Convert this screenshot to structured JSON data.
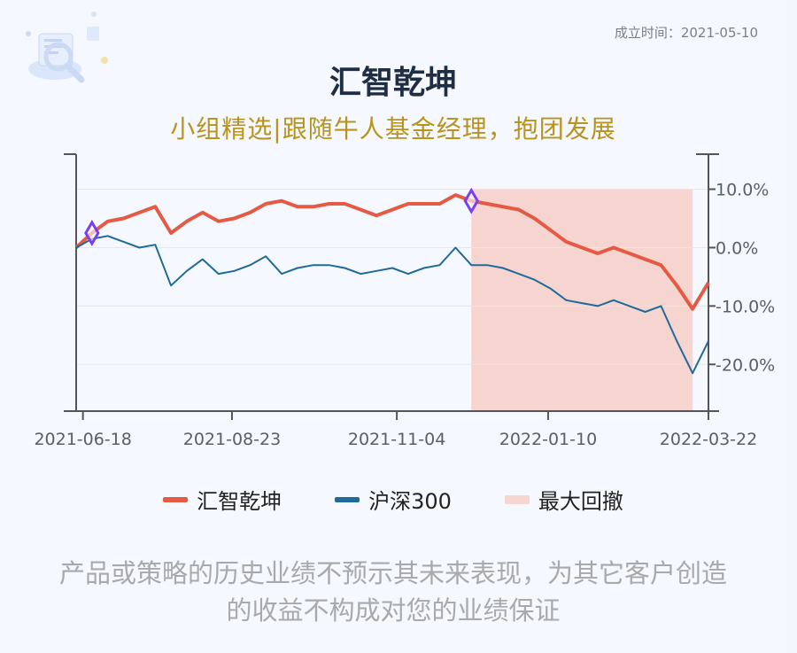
{
  "header": {
    "founded": "成立时间：2021-05-10",
    "title": "汇智乾坤",
    "subtitle": "小组精选|跟随牛人基金经理，抱团发展"
  },
  "legend": [
    {
      "label": "汇智乾坤",
      "color": "#e55a44"
    },
    {
      "label": "沪深300",
      "color": "#1f6a98"
    },
    {
      "label": "最大回撤",
      "color": "#f6d4d0"
    }
  ],
  "disclaimer": "产品或策略的历史业绩不预示其未来表现，为其它客户创造的收益不构成对您的业绩保证",
  "colors": {
    "fund": "#e55a44",
    "index": "#1f6a98",
    "drawdown": "#f6d4d0",
    "marker": "#7b3ff2",
    "axis": "#555555",
    "grid": "#e3e6ec"
  },
  "chart_data": {
    "type": "line",
    "x_ticks": [
      "2021-06-18",
      "2021-08-23",
      "2021-11-04",
      "2022-01-10",
      "2022-03-22"
    ],
    "y_ticks": [
      "10.0%",
      "0.0%",
      "-10.0%",
      "-20.0%"
    ],
    "ylim": [
      -28,
      16
    ],
    "y_axis_position": "right",
    "legend_position": "bottom",
    "grid": true,
    "x": [
      "2021-06-15",
      "2021-06-22",
      "2021-06-29",
      "2021-07-06",
      "2021-07-13",
      "2021-07-20",
      "2021-07-27",
      "2021-08-03",
      "2021-08-10",
      "2021-08-17",
      "2021-08-24",
      "2021-08-31",
      "2021-09-07",
      "2021-09-14",
      "2021-09-21",
      "2021-09-28",
      "2021-10-05",
      "2021-10-12",
      "2021-10-19",
      "2021-10-26",
      "2021-11-02",
      "2021-11-09",
      "2021-11-16",
      "2021-11-23",
      "2021-11-30",
      "2021-12-07",
      "2021-12-14",
      "2021-12-21",
      "2021-12-28",
      "2022-01-04",
      "2022-01-11",
      "2022-01-18",
      "2022-01-25",
      "2022-02-01",
      "2022-02-08",
      "2022-02-15",
      "2022-02-22",
      "2022-03-01",
      "2022-03-08",
      "2022-03-15",
      "2022-03-22"
    ],
    "series": [
      {
        "name": "汇智乾坤",
        "values": [
          0.0,
          2.5,
          4.5,
          5.0,
          6.0,
          7.0,
          2.5,
          4.5,
          6.0,
          4.5,
          5.0,
          6.0,
          7.5,
          8.0,
          7.0,
          7.0,
          7.5,
          7.5,
          6.5,
          5.5,
          6.5,
          7.5,
          7.5,
          7.5,
          9.0,
          8.0,
          7.5,
          7.0,
          6.5,
          5.0,
          3.0,
          1.0,
          0.0,
          -1.0,
          0.0,
          -1.0,
          -2.0,
          -3.0,
          -6.5,
          -10.5,
          -6.0
        ]
      },
      {
        "name": "沪深300",
        "values": [
          0.0,
          1.5,
          2.0,
          1.0,
          0.0,
          0.5,
          -6.5,
          -4.0,
          -2.0,
          -4.5,
          -4.0,
          -3.0,
          -1.5,
          -4.5,
          -3.5,
          -3.0,
          -3.0,
          -3.5,
          -4.5,
          -4.0,
          -3.5,
          -4.5,
          -3.5,
          -3.0,
          0.0,
          -3.0,
          -3.0,
          -3.5,
          -4.5,
          -5.5,
          -7.0,
          -9.0,
          -9.5,
          -10.0,
          -9.0,
          -10.0,
          -11.0,
          -10.0,
          -16.0,
          -21.5,
          -16.0
        ]
      }
    ],
    "max_drawdown": {
      "start": "2021-12-07",
      "end": "2022-03-15"
    },
    "markers": [
      "2021-06-22",
      "2021-12-07"
    ]
  }
}
